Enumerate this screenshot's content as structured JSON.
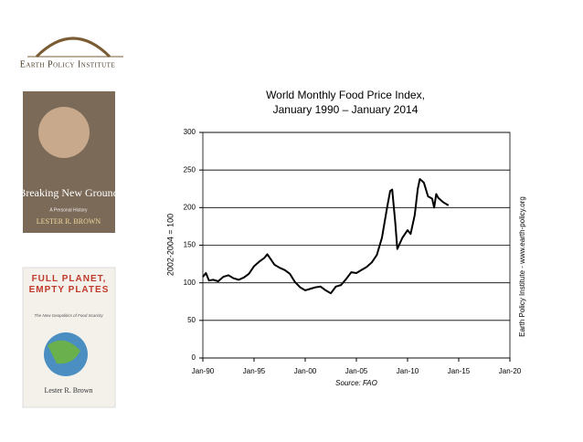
{
  "logo": {
    "text": "Earth Policy Institute"
  },
  "books": [
    {
      "title": "Breaking New Ground",
      "subtitle": "A Personal History",
      "author": "LESTER R. BROWN"
    },
    {
      "title": "FULL PLANET, EMPTY PLATES",
      "subtitle": "The New Geopolitics of Food Scarcity",
      "author": "Lester R. Brown"
    }
  ],
  "chart_data": {
    "type": "line",
    "title": "World Monthly Food Price Index,",
    "subtitle": "January 1990 – January 2014",
    "y_label": "2002-2004 = 100",
    "side_note": "Earth Policy Institute - www.earth-policy.org",
    "source": "Source: FAO",
    "xlim": [
      1990,
      2020
    ],
    "xticks": [
      {
        "value": 1990,
        "label": "Jan-90"
      },
      {
        "value": 1995,
        "label": "Jan-95"
      },
      {
        "value": 2000,
        "label": "Jan-00"
      },
      {
        "value": 2005,
        "label": "Jan-05"
      },
      {
        "value": 2010,
        "label": "Jan-10"
      },
      {
        "value": 2015,
        "label": "Jan-15"
      },
      {
        "value": 2020,
        "label": "Jan-20"
      }
    ],
    "ylim": [
      0,
      300
    ],
    "yticks": [
      0,
      50,
      100,
      150,
      200,
      250,
      300
    ],
    "grid": true,
    "series": [
      {
        "name": "Food Price Index",
        "color": "#000000",
        "x": [
          1990.0,
          1990.3,
          1990.6,
          1991.0,
          1991.5,
          1992.0,
          1992.5,
          1993.0,
          1993.5,
          1994.0,
          1994.5,
          1995.0,
          1995.5,
          1996.0,
          1996.3,
          1996.7,
          1997.0,
          1997.5,
          1998.0,
          1998.5,
          1999.0,
          1999.5,
          2000.0,
          2000.5,
          2001.0,
          2001.5,
          2002.0,
          2002.5,
          2003.0,
          2003.5,
          2004.0,
          2004.5,
          2005.0,
          2005.5,
          2006.0,
          2006.5,
          2007.0,
          2007.5,
          2008.0,
          2008.3,
          2008.5,
          2008.8,
          2009.0,
          2009.5,
          2010.0,
          2010.3,
          2010.7,
          2011.0,
          2011.2,
          2011.6,
          2012.0,
          2012.4,
          2012.6,
          2012.8,
          2013.0,
          2013.5,
          2014.0
        ],
        "values": [
          108,
          113,
          103,
          104,
          102,
          108,
          110,
          106,
          104,
          107,
          112,
          122,
          128,
          133,
          138,
          130,
          124,
          120,
          117,
          112,
          101,
          94,
          90,
          92,
          94,
          95,
          90,
          86,
          95,
          97,
          105,
          114,
          113,
          117,
          121,
          127,
          137,
          160,
          200,
          222,
          224,
          180,
          145,
          160,
          170,
          165,
          190,
          225,
          238,
          233,
          215,
          212,
          200,
          218,
          213,
          207,
          203
        ]
      }
    ]
  }
}
